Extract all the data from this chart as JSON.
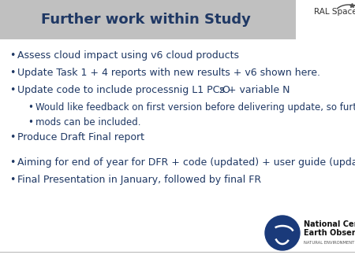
{
  "title": "Further work within Study",
  "title_color": "#1F3864",
  "title_bg_color": "#C0C0C0",
  "title_fontsize": 13,
  "bg_color": "#FFFFFF",
  "bullet_color": "#1F3864",
  "bullet_fontsize": 9.0,
  "subbullet_fontsize": 8.5,
  "ral_text": "RAL Space",
  "nceo_text1": "National Centre for",
  "nceo_text2": "Earth Observation",
  "nceo_text3": "NATURAL ENVIRONMENT RESEARCH COUNCIL"
}
